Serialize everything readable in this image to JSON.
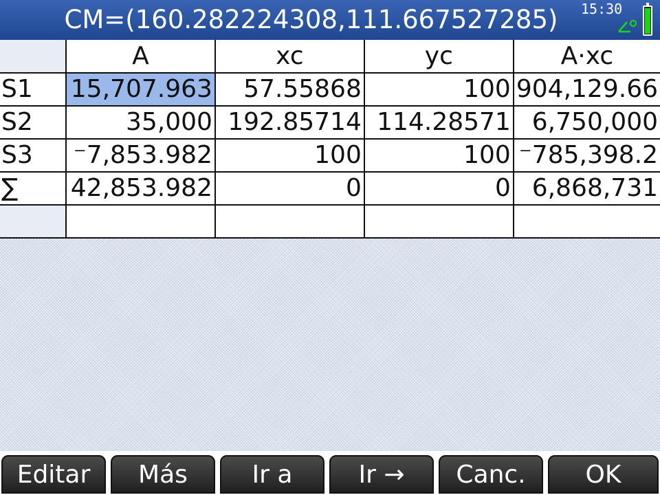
{
  "status_bar": {
    "title": "CM=(160.282224308,111.667527285)",
    "time": "15:30"
  },
  "table": {
    "columns": [
      "A",
      "xc",
      "yc",
      "A·xc"
    ],
    "rows": [
      {
        "label": "S1",
        "cells": [
          "15,707.963",
          "57.55868",
          "100",
          "904,129.66"
        ]
      },
      {
        "label": "S2",
        "cells": [
          "35,000",
          "192.85714",
          "114.28571",
          "6,750,000"
        ]
      },
      {
        "label": "S3",
        "cells": [
          "⁻7,853.982",
          "100",
          "100",
          "⁻785,398.2"
        ]
      },
      {
        "label": "∑",
        "cells": [
          "42,853.982",
          "0",
          "0",
          "6,868,731"
        ]
      },
      {
        "label": "",
        "cells": [
          "",
          "",
          "",
          ""
        ]
      }
    ],
    "selected_cell": "S1-A"
  },
  "menu": {
    "keys": [
      "Editar",
      "Más",
      "Ir a",
      "Ir →",
      "Canc.",
      "OK"
    ]
  }
}
